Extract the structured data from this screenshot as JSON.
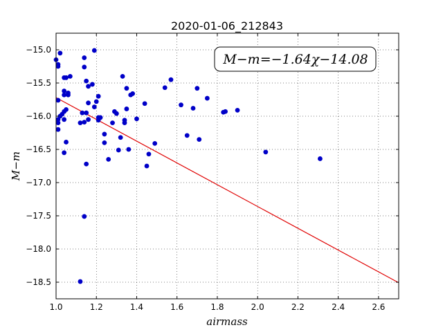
{
  "chart_data": {
    "type": "scatter",
    "title": "2020-01-06_212843",
    "xlabel": "airmass",
    "ylabel": "M−m",
    "xlim": [
      1.0,
      2.7
    ],
    "ylim": [
      -18.75,
      -14.75
    ],
    "x_ticks": [
      1.0,
      1.2,
      1.4,
      1.6,
      1.8,
      2.0,
      2.2,
      2.4,
      2.6
    ],
    "x_tick_labels": [
      "1.0",
      "1.2",
      "1.4",
      "1.6",
      "1.8",
      "2.0",
      "2.2",
      "2.4",
      "2.6"
    ],
    "y_ticks": [
      -15.0,
      -15.5,
      -16.0,
      -16.5,
      -17.0,
      -17.5,
      -18.0,
      -18.5
    ],
    "y_tick_labels": [
      "−15.0",
      "−15.5",
      "−16.0",
      "−16.5",
      "−17.0",
      "−17.5",
      "−18.0",
      "−18.5"
    ],
    "grid": true,
    "annotation": "M−m=−1.64χ−14.08",
    "fit": {
      "slope": -1.64,
      "intercept": -14.08,
      "color": "#e00000"
    },
    "point_color": "#0000c8",
    "points": [
      [
        1.0,
        -15.15
      ],
      [
        1.01,
        -15.22
      ],
      [
        1.01,
        -15.25
      ],
      [
        1.02,
        -15.05
      ],
      [
        1.01,
        -15.76
      ],
      [
        1.01,
        -16.05
      ],
      [
        1.01,
        -16.1
      ],
      [
        1.01,
        -16.2
      ],
      [
        1.02,
        -16.0
      ],
      [
        1.03,
        -15.97
      ],
      [
        1.04,
        -15.93
      ],
      [
        1.05,
        -15.9
      ],
      [
        1.04,
        -16.05
      ],
      [
        1.04,
        -15.62
      ],
      [
        1.04,
        -15.68
      ],
      [
        1.04,
        -15.42
      ],
      [
        1.05,
        -15.42
      ],
      [
        1.06,
        -15.68
      ],
      [
        1.06,
        -15.65
      ],
      [
        1.07,
        -15.4
      ],
      [
        1.05,
        -16.39
      ],
      [
        1.04,
        -16.55
      ],
      [
        1.12,
        -16.1
      ],
      [
        1.13,
        -15.95
      ],
      [
        1.14,
        -15.12
      ],
      [
        1.14,
        -15.26
      ],
      [
        1.15,
        -15.47
      ],
      [
        1.16,
        -15.55
      ],
      [
        1.16,
        -15.8
      ],
      [
        1.15,
        -15.95
      ],
      [
        1.16,
        -16.05
      ],
      [
        1.14,
        -16.09
      ],
      [
        1.18,
        -15.52
      ],
      [
        1.19,
        -15.01
      ],
      [
        1.19,
        -15.86
      ],
      [
        1.2,
        -15.78
      ],
      [
        1.21,
        -15.7
      ],
      [
        1.21,
        -16.02
      ],
      [
        1.21,
        -16.06
      ],
      [
        1.22,
        -16.02
      ],
      [
        1.24,
        -16.27
      ],
      [
        1.24,
        -16.4
      ],
      [
        1.26,
        -16.65
      ],
      [
        1.15,
        -16.72
      ],
      [
        1.14,
        -17.51
      ],
      [
        1.12,
        -18.49
      ],
      [
        1.28,
        -16.1
      ],
      [
        1.29,
        -15.93
      ],
      [
        1.3,
        -15.96
      ],
      [
        1.31,
        -16.51
      ],
      [
        1.32,
        -16.32
      ],
      [
        1.33,
        -15.4
      ],
      [
        1.34,
        -16.06
      ],
      [
        1.34,
        -16.1
      ],
      [
        1.35,
        -15.58
      ],
      [
        1.35,
        -15.89
      ],
      [
        1.36,
        -16.5
      ],
      [
        1.37,
        -15.68
      ],
      [
        1.38,
        -15.66
      ],
      [
        1.4,
        -16.04
      ],
      [
        1.44,
        -15.81
      ],
      [
        1.45,
        -16.75
      ],
      [
        1.46,
        -16.57
      ],
      [
        1.49,
        -16.41
      ],
      [
        1.54,
        -15.57
      ],
      [
        1.57,
        -15.45
      ],
      [
        1.62,
        -15.83
      ],
      [
        1.65,
        -16.29
      ],
      [
        1.68,
        -15.88
      ],
      [
        1.7,
        -15.58
      ],
      [
        1.71,
        -16.35
      ],
      [
        1.75,
        -15.73
      ],
      [
        1.83,
        -15.94
      ],
      [
        1.84,
        -15.93
      ],
      [
        1.9,
        -15.91
      ],
      [
        2.04,
        -16.54
      ],
      [
        2.31,
        -16.64
      ]
    ]
  }
}
